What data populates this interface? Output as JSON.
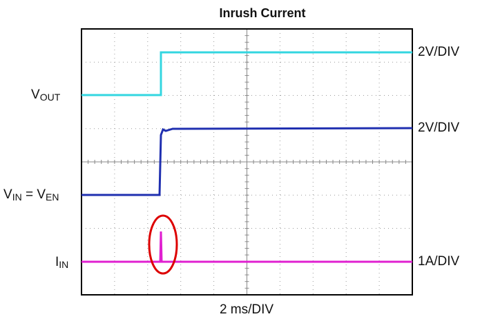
{
  "title": "Inrush Current",
  "left_labels": {
    "vout": [
      "V",
      "OUT"
    ],
    "vin": [
      "V",
      "IN",
      " = V",
      "EN"
    ],
    "iin": [
      "I",
      "IN"
    ]
  },
  "right_labels": [
    "2V/DIV",
    "2V/DIV",
    "1A/DIV"
  ],
  "x_scale": "2 ms/DIV"
}
